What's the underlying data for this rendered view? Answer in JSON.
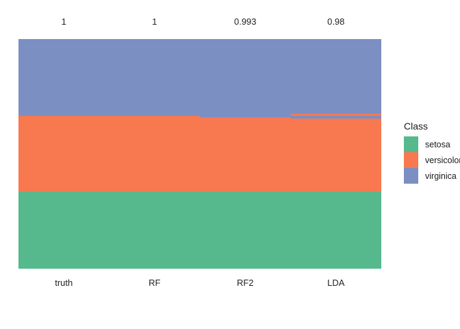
{
  "chart_data": {
    "type": "bar",
    "subtype": "stacked-classification-columns",
    "title": "",
    "xlabel": "",
    "ylabel": "",
    "grid": false,
    "legend_position": "right",
    "categories": [
      "truth",
      "RF",
      "RF2",
      "LDA"
    ],
    "top_axis_labels": [
      "1",
      "1",
      "0.993",
      "0.98"
    ],
    "total_samples": 150,
    "ylim": [
      0,
      150
    ],
    "class_colors": {
      "setosa": "#55B98D",
      "versicolor": "#F8784F",
      "virginica": "#7C8FC3"
    },
    "columns": [
      {
        "label": "truth",
        "accuracy_label": "1",
        "segments_top_to_bottom": [
          {
            "class": "virginica",
            "count": 50
          },
          {
            "class": "versicolor",
            "count": 50
          },
          {
            "class": "setosa",
            "count": 50
          }
        ]
      },
      {
        "label": "RF",
        "accuracy_label": "1",
        "segments_top_to_bottom": [
          {
            "class": "virginica",
            "count": 50
          },
          {
            "class": "versicolor",
            "count": 50
          },
          {
            "class": "setosa",
            "count": 50
          }
        ]
      },
      {
        "label": "RF2",
        "accuracy_label": "0.993",
        "segments_top_to_bottom": [
          {
            "class": "virginica",
            "count": 51
          },
          {
            "class": "versicolor",
            "count": 49
          },
          {
            "class": "setosa",
            "count": 50
          }
        ]
      },
      {
        "label": "LDA",
        "accuracy_label": "0.98",
        "segments_top_to_bottom": [
          {
            "class": "virginica",
            "count": 49
          },
          {
            "class": "versicolor",
            "count": 1
          },
          {
            "class": "virginica",
            "count": 2
          },
          {
            "class": "versicolor",
            "count": 48
          },
          {
            "class": "setosa",
            "count": 50
          }
        ]
      }
    ],
    "legend": {
      "title": "Class",
      "entries": [
        {
          "label": "setosa",
          "color": "#55B98D"
        },
        {
          "label": "versicolor",
          "color": "#F8784F"
        },
        {
          "label": "virginica",
          "color": "#7C8FC3"
        }
      ]
    }
  }
}
